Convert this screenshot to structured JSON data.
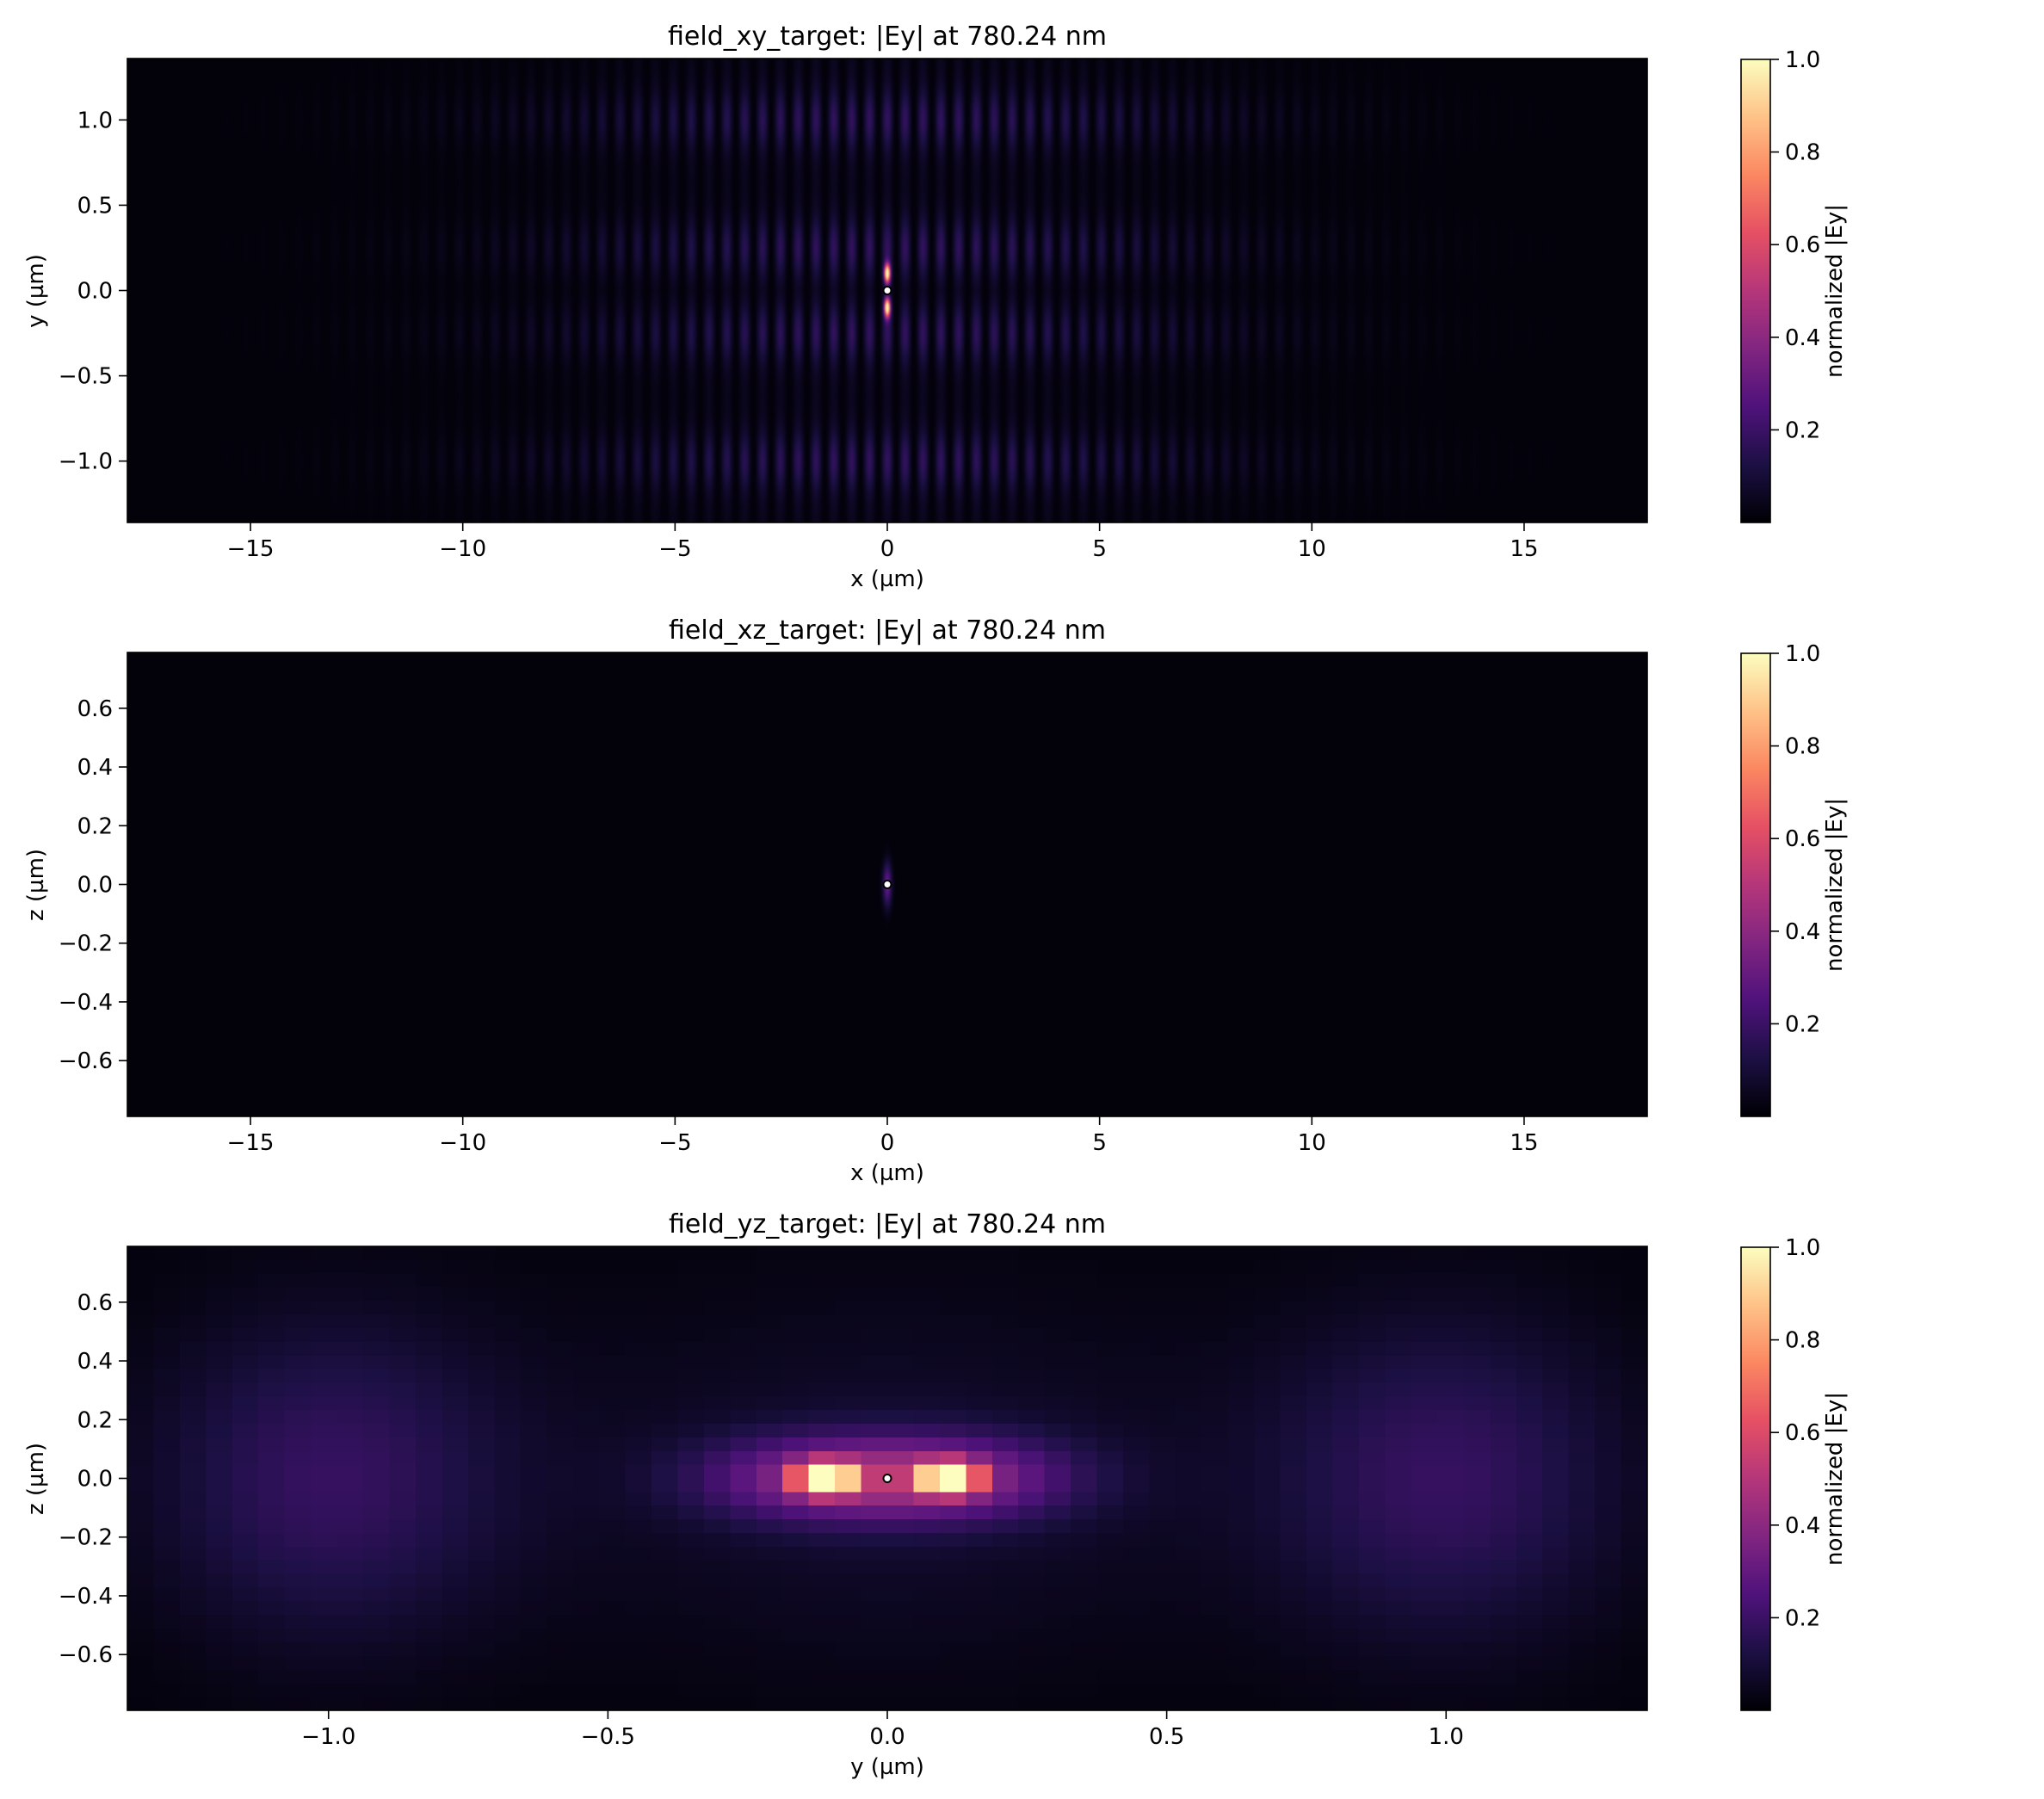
{
  "chart_data": [
    {
      "type": "heatmap",
      "title": "field_xy_target: |Ey| at 780.24 nm",
      "xlabel": "x (µm)",
      "ylabel": "y (µm)",
      "xlim": [
        -17.9,
        17.9
      ],
      "ylim": [
        -1.36,
        1.36
      ],
      "xticks": [
        -15,
        -10,
        -5,
        0,
        5,
        10,
        15
      ],
      "xtick_labels": [
        "−15",
        "−10",
        "−5",
        "0",
        "5",
        "10",
        "15"
      ],
      "yticks": [
        -1.0,
        -0.5,
        0.0,
        0.5,
        1.0
      ],
      "ytick_labels": [
        "−1.0",
        "−0.5",
        "0.0",
        "0.5",
        "1.0"
      ],
      "colorbar": {
        "label": "normalized |Ey|",
        "ticks": [
          0.2,
          0.4,
          0.6,
          0.8,
          1.0
        ],
        "tick_labels": [
          "0.2",
          "0.4",
          "0.6",
          "0.8",
          "1.0"
        ],
        "colormap": "magma",
        "range": [
          0.0,
          1.0
        ]
      },
      "marker": {
        "x": 0,
        "y": 0
      },
      "features": [
        {
          "kind": "fringes",
          "x_center": 0,
          "x_halfwidth": 9.5,
          "fringe_period": 0.42,
          "y_bands": [
            -1.0,
            -0.25,
            0.25,
            1.0
          ],
          "band_halfwidth": 0.17,
          "peak": 0.17
        },
        {
          "kind": "hotspot",
          "x": 0,
          "y": 0.1,
          "sx": 0.05,
          "sy": 0.04,
          "peak": 1.0
        },
        {
          "kind": "hotspot",
          "x": 0,
          "y": -0.1,
          "sx": 0.05,
          "sy": 0.04,
          "peak": 1.0
        }
      ]
    },
    {
      "type": "heatmap",
      "title": "field_xz_target: |Ey| at 780.24 nm",
      "xlabel": "x (µm)",
      "ylabel": "z (µm)",
      "xlim": [
        -17.9,
        17.9
      ],
      "ylim": [
        -0.79,
        0.79
      ],
      "xticks": [
        -15,
        -10,
        -5,
        0,
        5,
        10,
        15
      ],
      "xtick_labels": [
        "−15",
        "−10",
        "−5",
        "0",
        "5",
        "10",
        "15"
      ],
      "yticks": [
        -0.6,
        -0.4,
        -0.2,
        0.0,
        0.2,
        0.4,
        0.6
      ],
      "ytick_labels": [
        "−0.6",
        "−0.4",
        "−0.2",
        "0.0",
        "0.2",
        "0.4",
        "0.6"
      ],
      "colorbar": {
        "label": "normalized |Ey|",
        "ticks": [
          0.2,
          0.4,
          0.6,
          0.8,
          1.0
        ],
        "tick_labels": [
          "0.2",
          "0.4",
          "0.6",
          "0.8",
          "1.0"
        ],
        "colormap": "magma",
        "range": [
          0.0,
          1.0
        ]
      },
      "marker": {
        "x": 0,
        "y": 0
      },
      "features": [
        {
          "kind": "hotspot",
          "x": 0,
          "y": 0.0,
          "sx": 0.07,
          "sy": 0.05,
          "peak": 0.3
        }
      ]
    },
    {
      "type": "heatmap",
      "title": "field_yz_target: |Ey| at 780.24 nm",
      "xlabel": "y (µm)",
      "ylabel": "z (µm)",
      "xlim": [
        -1.36,
        1.36
      ],
      "ylim": [
        -0.79,
        0.79
      ],
      "xticks": [
        -1.0,
        -0.5,
        0.0,
        0.5,
        1.0
      ],
      "xtick_labels": [
        "−1.0",
        "−0.5",
        "0.0",
        "0.5",
        "1.0"
      ],
      "yticks": [
        -0.6,
        -0.4,
        -0.2,
        0.0,
        0.2,
        0.4,
        0.6
      ],
      "ytick_labels": [
        "−0.6",
        "−0.4",
        "−0.2",
        "0.0",
        "0.2",
        "0.4",
        "0.6"
      ],
      "colorbar": {
        "label": "normalized |Ey|",
        "ticks": [
          0.2,
          0.4,
          0.6,
          0.8,
          1.0
        ],
        "tick_labels": [
          "0.2",
          "0.4",
          "0.6",
          "0.8",
          "1.0"
        ],
        "colormap": "magma",
        "range": [
          0.0,
          1.0
        ]
      },
      "marker": {
        "x": 0,
        "y": 0
      },
      "features": [
        {
          "kind": "hotspot",
          "x": -0.11,
          "y": 0.0,
          "sx": 0.035,
          "sy": 0.035,
          "peak": 1.0
        },
        {
          "kind": "hotspot",
          "x": 0.11,
          "y": 0.0,
          "sx": 0.035,
          "sy": 0.035,
          "peak": 1.0
        },
        {
          "kind": "lobe",
          "x": -0.12,
          "y": 0.0,
          "sx": 0.16,
          "sy": 0.1,
          "peak": 0.28
        },
        {
          "kind": "lobe",
          "x": 0.12,
          "y": 0.0,
          "sx": 0.16,
          "sy": 0.1,
          "peak": 0.28
        },
        {
          "kind": "lobe",
          "x": -1.0,
          "y": 0.0,
          "sx": 0.22,
          "sy": 0.38,
          "peak": 0.17
        },
        {
          "kind": "lobe",
          "x": 1.0,
          "y": 0.0,
          "sx": 0.22,
          "sy": 0.38,
          "peak": 0.17
        },
        {
          "kind": "halo",
          "x": 0.0,
          "y": 0.0,
          "sx": 0.45,
          "sy": 0.45,
          "peak": 0.07
        }
      ]
    }
  ]
}
